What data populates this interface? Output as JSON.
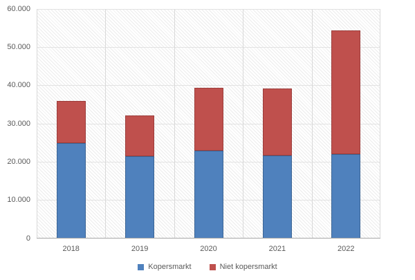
{
  "chart_data": {
    "type": "bar",
    "stacked": true,
    "title": "",
    "xlabel": "",
    "ylabel": "",
    "categories": [
      "2018",
      "2019",
      "2020",
      "2021",
      "2022"
    ],
    "series": [
      {
        "name": "Kopersmarkt",
        "color": "#4f81bd",
        "border_color": "#3c6595",
        "values": [
          25000,
          21500,
          23000,
          21700,
          22000
        ]
      },
      {
        "name": "Niet kopersmarkt",
        "color": "#bf504d",
        "border_color": "#9c3d3b",
        "values": [
          11000,
          10700,
          16400,
          17500,
          32400
        ]
      }
    ],
    "ylim": [
      0,
      60000
    ],
    "yticks": [
      {
        "value": 0,
        "label": "0"
      },
      {
        "value": 10000,
        "label": "10.000"
      },
      {
        "value": 20000,
        "label": "20.000"
      },
      {
        "value": 30000,
        "label": "30.000"
      },
      {
        "value": 40000,
        "label": "40.000"
      },
      {
        "value": 50000,
        "label": "50.000"
      },
      {
        "value": 60000,
        "label": "60.000"
      }
    ],
    "grid": true,
    "plot_background": "diagonal-hatch",
    "legend_position": "bottom"
  }
}
